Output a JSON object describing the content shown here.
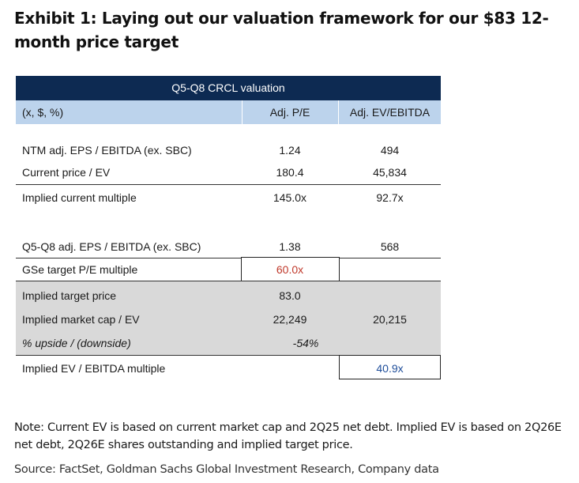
{
  "title": "Exhibit 1: Laying out our valuation framework for our $83 12-month price target",
  "table": {
    "header_title": "Q5-Q8 CRCL valuation",
    "columns": [
      "(x, $, %)",
      "Adj. P/E",
      "Adj. EV/EBITDA"
    ],
    "rows": [
      {
        "label": "NTM adj. EPS / EBITDA (ex. SBC)",
        "pe": "1.24",
        "ev": "494"
      },
      {
        "label": "Current price / EV",
        "pe": "180.4",
        "ev": "45,834"
      },
      {
        "label": "Implied current multiple",
        "pe": "145.0x",
        "ev": "92.7x"
      },
      {
        "label": "Q5-Q8 adj. EPS / EBITDA (ex. SBC)",
        "pe": "1.38",
        "ev": "568"
      },
      {
        "label": "GSe target P/E multiple",
        "pe": "60.0x",
        "ev": ""
      },
      {
        "label": "Implied target price",
        "pe": "83.0",
        "ev": ""
      },
      {
        "label": "Implied market cap / EV",
        "pe": "22,249",
        "ev": "20,215"
      },
      {
        "label": "% upside / (downside)",
        "pe": "-54%",
        "ev": ""
      },
      {
        "label": "Implied EV / EBITDA multiple",
        "pe": "",
        "ev": "40.9x"
      }
    ]
  },
  "colors": {
    "header_dark": "#0d2a52",
    "header_light": "#bcd3ec",
    "gray_band": "#d9d9d9",
    "highlight_red": "#c0392b",
    "highlight_blue": "#1f4e9a"
  },
  "note": "Note: Current EV is based on current market cap and 2Q25 net debt. Implied EV is based on 2Q26E net debt, 2Q26E shares outstanding and implied target price.",
  "source": "Source: FactSet, Goldman Sachs Global Investment Research, Company data"
}
